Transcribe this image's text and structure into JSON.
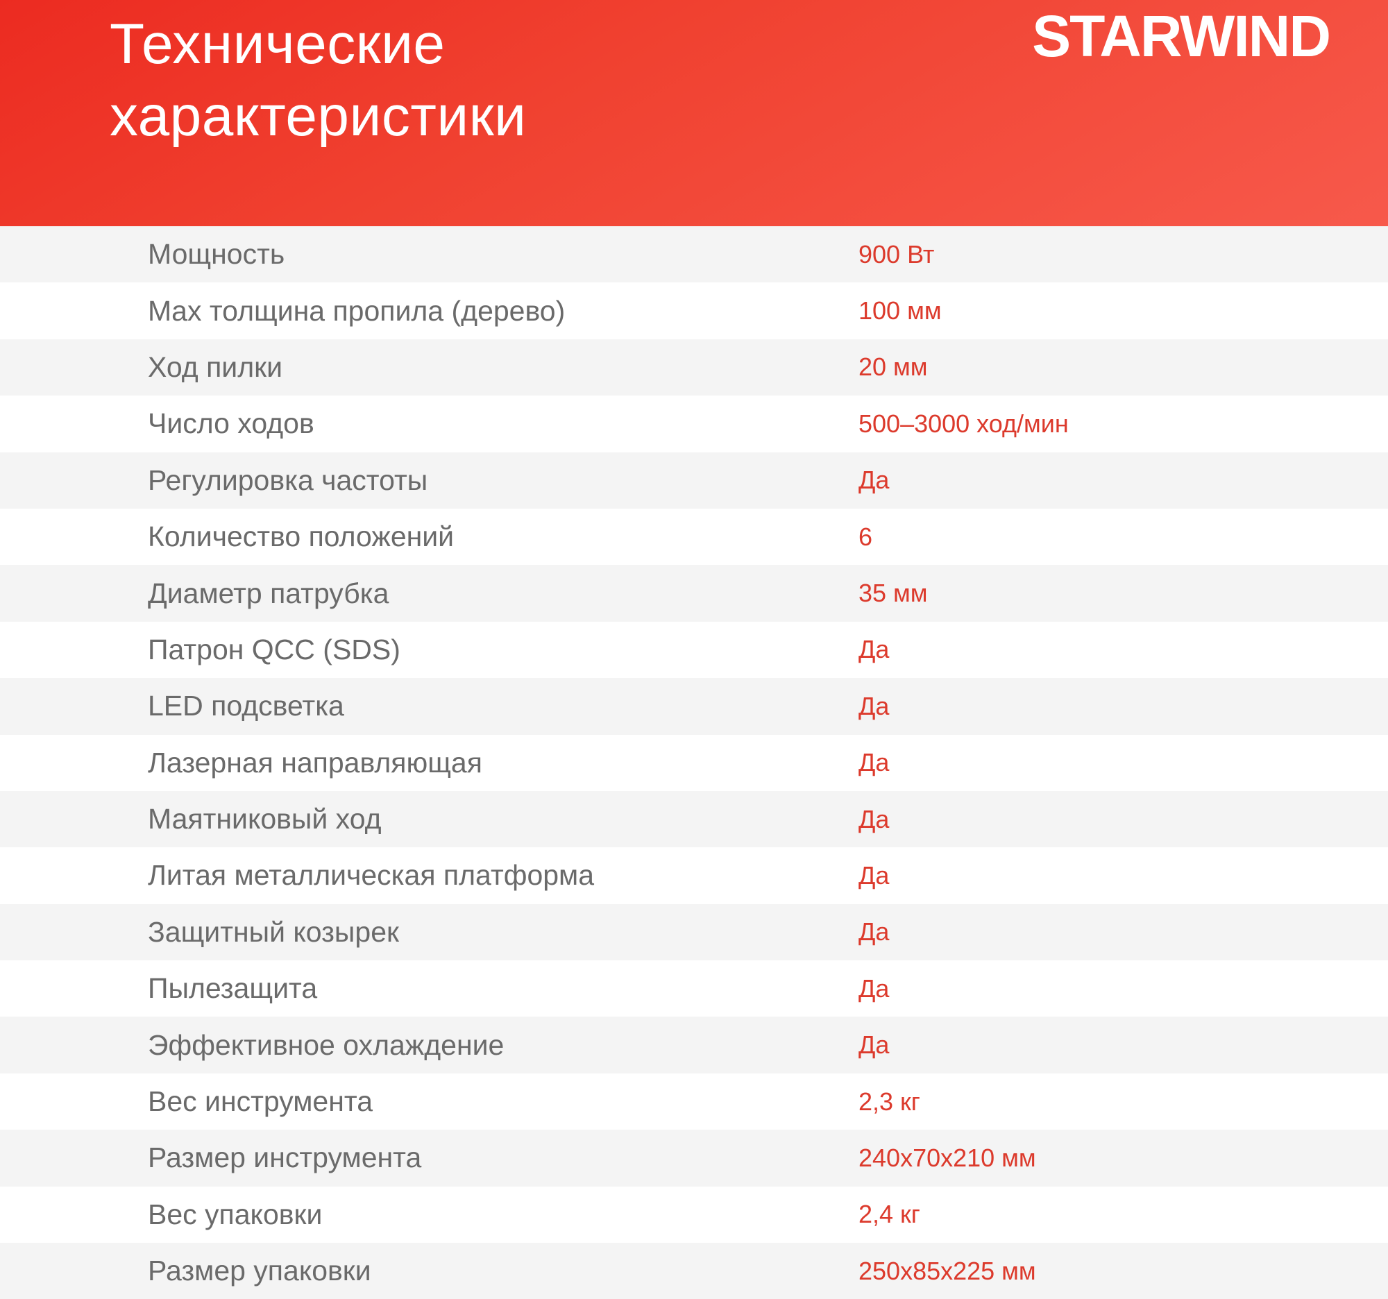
{
  "header": {
    "title": "Технические характеристики",
    "brand": "STARWIND"
  },
  "colors": {
    "header_gradient_start": "#ec2b21",
    "header_gradient_mid": "#f04130",
    "header_gradient_end": "#f7594b",
    "title_text": "#ffffff",
    "label_gray": "#6a6a6a",
    "value_red": "#dc3a2c",
    "row_bg": "#ffffff",
    "row_alt_bg": "#f4f4f4"
  },
  "spec_table": {
    "rows": [
      {
        "label": "Мощность",
        "value": "900 Вт"
      },
      {
        "label": "Max толщина пропила (дерево)",
        "value": "100 мм"
      },
      {
        "label": "Ход пилки",
        "value": "20 мм"
      },
      {
        "label": "Число ходов",
        "value": "500–3000 ход/мин"
      },
      {
        "label": "Регулировка частоты",
        "value": "Да"
      },
      {
        "label": "Количество положений",
        "value": "6"
      },
      {
        "label": "Диаметр патрубка",
        "value": "35 мм"
      },
      {
        "label": "Патрон QCC (SDS)",
        "value": "Да"
      },
      {
        "label": "LED подсветка",
        "value": "Да"
      },
      {
        "label": "Лазерная направляющая",
        "value": "Да"
      },
      {
        "label": "Маятниковый ход",
        "value": "Да"
      },
      {
        "label": "Литая металлическая платформа",
        "value": "Да"
      },
      {
        "label": "Защитный козырек",
        "value": "Да"
      },
      {
        "label": "Пылезащита",
        "value": "Да"
      },
      {
        "label": "Эффективное охлаждение",
        "value": "Да"
      },
      {
        "label": "Вес инструмента",
        "value": "2,3 кг"
      },
      {
        "label": "Размер инструмента",
        "value": "240х70х210 мм"
      },
      {
        "label": "Вес упаковки",
        "value": "2,4 кг"
      },
      {
        "label": "Размер упаковки",
        "value": "250х85х225 мм"
      }
    ]
  }
}
